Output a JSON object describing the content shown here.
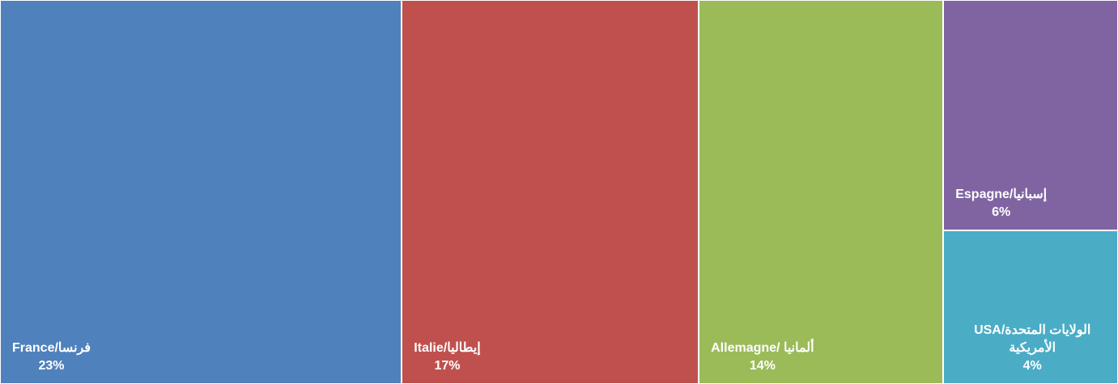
{
  "chart_data": {
    "type": "treemap",
    "categories": [
      "France/فرنسا",
      "Italie/إيطاليا",
      "Allemagne/ ألمانيا",
      "Espagne/إسبانيا",
      "USA/الولايات المتحدة الأمريكية"
    ],
    "values": [
      23,
      17,
      14,
      6,
      4
    ],
    "value_labels": [
      "23%",
      "17%",
      "14%",
      "6%",
      "4%"
    ],
    "colors": [
      "#4f81bd",
      "#c0504d",
      "#9bbb59",
      "#8064a2",
      "#4bacc6"
    ]
  }
}
